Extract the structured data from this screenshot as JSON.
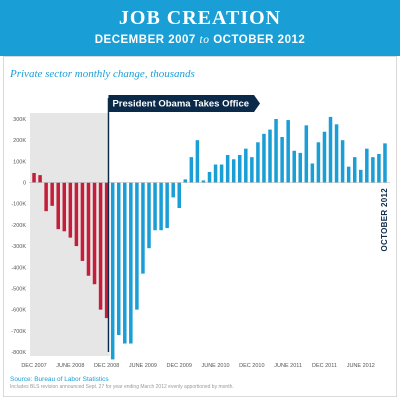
{
  "header": {
    "title": "JOB CREATION",
    "subtitle_start": "DECEMBER 2007",
    "subtitle_mid": "to",
    "subtitle_end": "OCTOBER 2012"
  },
  "colors": {
    "header_bg": "#1a9ed6",
    "bar_before": "#c41e3a",
    "bar_after": "#1a9ed6",
    "marker": "#0b2a4a",
    "shade": "#e6e6e6"
  },
  "chart_data": {
    "type": "bar",
    "title": "JOB CREATION",
    "subtitle": "DECEMBER 2007 to OCTOBER 2012",
    "ylabel": "Private sector monthly change, thousands",
    "xlabel": "",
    "ylim": [
      -800,
      300
    ],
    "y_ticks": [
      300,
      200,
      100,
      0,
      -100,
      -200,
      -300,
      -400,
      -500,
      -600,
      -700,
      -800
    ],
    "y_tick_labels": [
      "300K",
      "200K",
      "100K",
      "0",
      "-100K",
      "-200K",
      "-300K",
      "-400K",
      "-500K",
      "-600K",
      "-700K",
      "-800K"
    ],
    "x_tick_labels": [
      "DEC 2007",
      "JUNE 2008",
      "DEC 2008",
      "JUNE 2009",
      "DEC 2009",
      "JUNE 2010",
      "DEC 2010",
      "JUNE 2011",
      "DEC 2011",
      "JUNE 2012"
    ],
    "x_tick_index": [
      0,
      6,
      12,
      18,
      24,
      30,
      36,
      42,
      48,
      54
    ],
    "categories": [
      "2007-12",
      "2008-01",
      "2008-02",
      "2008-03",
      "2008-04",
      "2008-05",
      "2008-06",
      "2008-07",
      "2008-08",
      "2008-09",
      "2008-10",
      "2008-11",
      "2008-12",
      "2009-01",
      "2009-02",
      "2009-03",
      "2009-04",
      "2009-05",
      "2009-06",
      "2009-07",
      "2009-08",
      "2009-09",
      "2009-10",
      "2009-11",
      "2009-12",
      "2010-01",
      "2010-02",
      "2010-03",
      "2010-04",
      "2010-05",
      "2010-06",
      "2010-07",
      "2010-08",
      "2010-09",
      "2010-10",
      "2010-11",
      "2010-12",
      "2011-01",
      "2011-02",
      "2011-03",
      "2011-04",
      "2011-05",
      "2011-06",
      "2011-07",
      "2011-08",
      "2011-09",
      "2011-10",
      "2011-11",
      "2011-12",
      "2012-01",
      "2012-02",
      "2012-03",
      "2012-04",
      "2012-05",
      "2012-06",
      "2012-07",
      "2012-08",
      "2012-09",
      "2012-10"
    ],
    "values": [
      45,
      35,
      -135,
      -110,
      -220,
      -230,
      -260,
      -300,
      -370,
      -440,
      -480,
      -600,
      -640,
      -835,
      -720,
      -760,
      -760,
      -600,
      -430,
      -310,
      -225,
      -225,
      -215,
      -70,
      -120,
      15,
      120,
      200,
      10,
      50,
      85,
      85,
      130,
      110,
      130,
      160,
      120,
      190,
      230,
      250,
      300,
      215,
      295,
      150,
      140,
      270,
      90,
      190,
      240,
      310,
      275,
      200,
      75,
      120,
      60,
      160,
      120,
      135,
      185
    ],
    "series": [
      {
        "name": "",
        "range": [
          0,
          12
        ]
      },
      {
        "name": "",
        "range": [
          13,
          58
        ]
      }
    ],
    "annotation": {
      "label": "President Obama Takes Office",
      "at_index": 13
    },
    "end_label": "OCTOBER 2012",
    "grid": false,
    "legend": "none"
  },
  "footer": {
    "source": "Source: Bureau of Labor Statistics",
    "footnote": "Includes BLS revision announced Sept. 27 for year ending March 2012 evenly apportioned by month."
  }
}
